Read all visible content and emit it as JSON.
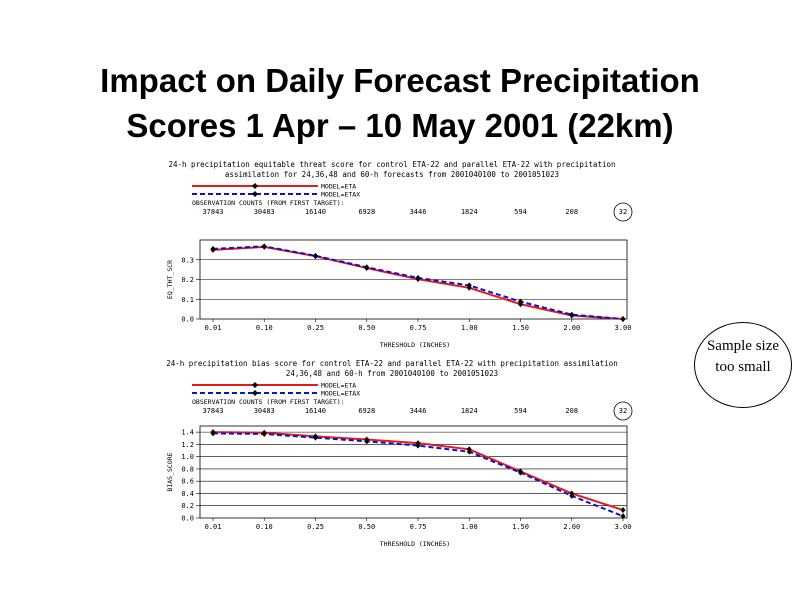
{
  "slide": {
    "title_line1": "Impact on Daily Forecast Precipitation",
    "title_line2": "Scores 1 Apr – 10 May 2001 (22km)"
  },
  "callout": {
    "line1": "Sample size",
    "line2": "too small"
  },
  "colors": {
    "model_eta": "#e31b1b",
    "model_etax": "#1010d0"
  },
  "chart_data": [
    {
      "type": "line",
      "title_line1": "24-h precipitation equitable threat score for control ETA-22 and parallel ETA-22 with precipitation",
      "title_line2": "assimilation for 24,36,48 and 60-h forecasts from 2001040100 to 2001051023",
      "legend": [
        "MODEL=ETA",
        "MODEL=ETAX"
      ],
      "obs_label": "OBSERVATION COUNTS (FROM FIRST TARGET):",
      "obs_counts": [
        "37843",
        "30483",
        "16140",
        "6928",
        "3446",
        "1824",
        "594",
        "208",
        "32"
      ],
      "categories": [
        "0.01",
        "0.10",
        "0.25",
        "0.50",
        "0.75",
        "1.00",
        "1.50",
        "2.00",
        "3.00"
      ],
      "xlabel": "THRESHOLD (INCHES)",
      "ylabel": "EQ_THT_SCR",
      "ylim": [
        0,
        0.4
      ],
      "yticks": [
        "0.0",
        "0.1",
        "0.2",
        "0.3"
      ],
      "series": [
        {
          "name": "MODEL=ETA",
          "values": [
            0.35,
            0.365,
            0.318,
            0.258,
            0.202,
            0.158,
            0.075,
            0.018,
            0.0
          ]
        },
        {
          "name": "MODEL=ETAX",
          "values": [
            0.355,
            0.368,
            0.32,
            0.262,
            0.208,
            0.17,
            0.088,
            0.022,
            0.0
          ]
        }
      ]
    },
    {
      "type": "line",
      "title_line1": "24-h precipitation bias score for control ETA-22 and parallel ETA-22 with precipitation assimilation",
      "title_line2": "24,36,48 and 60-h from 2001040100 to 2001051023",
      "legend": [
        "MODEL=ETA",
        "MODEL=ETAX"
      ],
      "obs_label": "OBSERVATION COUNTS (FROM FIRST TARGET):",
      "obs_counts": [
        "37843",
        "30483",
        "16140",
        "6928",
        "3446",
        "1824",
        "594",
        "208",
        "32"
      ],
      "categories": [
        "0.01",
        "0.10",
        "0.25",
        "0.50",
        "0.75",
        "1.00",
        "1.50",
        "2.00",
        "3.00"
      ],
      "xlabel": "THRESHOLD (INCHES)",
      "ylabel": "BIAS_SCORE",
      "ylim": [
        0,
        1.5
      ],
      "yticks": [
        "0.0",
        "0.2",
        "0.4",
        "0.6",
        "0.8",
        "1.0",
        "1.2",
        "1.4"
      ],
      "series": [
        {
          "name": "MODEL=ETA",
          "values": [
            1.4,
            1.39,
            1.33,
            1.28,
            1.22,
            1.12,
            0.76,
            0.4,
            0.13
          ]
        },
        {
          "name": "MODEL=ETAX",
          "values": [
            1.38,
            1.37,
            1.31,
            1.25,
            1.18,
            1.08,
            0.74,
            0.36,
            0.03
          ]
        }
      ]
    }
  ]
}
